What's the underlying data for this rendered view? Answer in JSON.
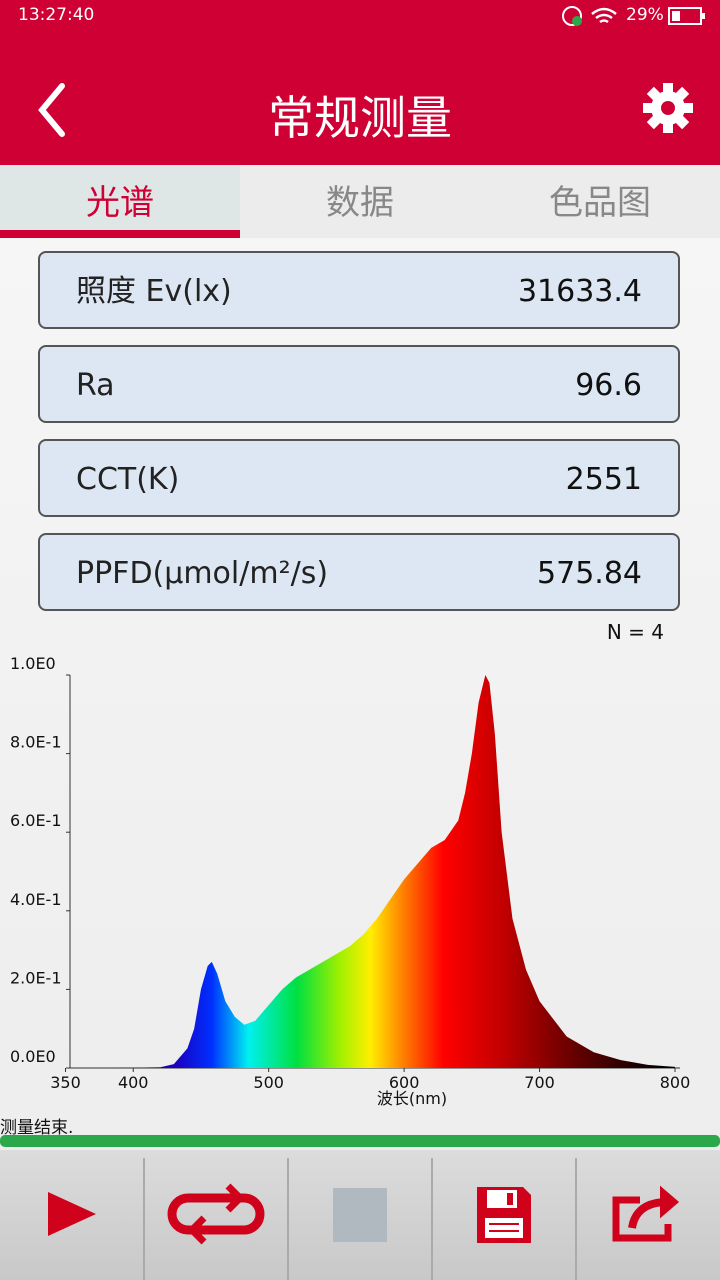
{
  "status_bar": {
    "time": "13:27:40",
    "battery": "29%"
  },
  "header": {
    "title": "常规测量"
  },
  "tabs": [
    "光谱",
    "数据",
    "色品图"
  ],
  "measurements": [
    {
      "label": "照度 Ev(lx)",
      "value": 31633.4
    },
    {
      "label": "Ra",
      "value": 96.6
    },
    {
      "label": "CCT(K)",
      "value": 2551
    },
    {
      "label": "PPFD(μmol/m²/s)",
      "value": 575.84
    }
  ],
  "sample_count": "N = 4",
  "chart_data": {
    "type": "area",
    "xlabel": "波长(nm)",
    "x": [
      380,
      420,
      430,
      440,
      445,
      450,
      455,
      458,
      462,
      468,
      475,
      482,
      490,
      500,
      510,
      520,
      530,
      540,
      550,
      560,
      570,
      580,
      590,
      600,
      610,
      620,
      630,
      640,
      645,
      650,
      655,
      660,
      663,
      667,
      672,
      680,
      690,
      700,
      720,
      740,
      760,
      780,
      800
    ],
    "values": [
      0,
      0.002,
      0.01,
      0.05,
      0.1,
      0.2,
      0.26,
      0.27,
      0.24,
      0.17,
      0.13,
      0.11,
      0.12,
      0.16,
      0.2,
      0.23,
      0.25,
      0.27,
      0.29,
      0.31,
      0.34,
      0.38,
      0.43,
      0.48,
      0.52,
      0.56,
      0.58,
      0.63,
      0.7,
      0.8,
      0.93,
      1.0,
      0.98,
      0.85,
      0.6,
      0.38,
      0.25,
      0.17,
      0.08,
      0.04,
      0.02,
      0.008,
      0.003
    ],
    "xlim": [
      350,
      800
    ],
    "xticks": [
      350,
      400,
      500,
      600,
      700,
      800
    ],
    "ylim": [
      0,
      1
    ],
    "yticks": [
      {
        "value": 0,
        "label": "0.0E0"
      },
      {
        "value": 0.2,
        "label": "2.0E-1"
      },
      {
        "value": 0.4,
        "label": "4.0E-1"
      },
      {
        "value": 0.6,
        "label": "6.0E-1"
      },
      {
        "value": 0.8,
        "label": "8.0E-1"
      },
      {
        "value": 1,
        "label": "1.0E0"
      }
    ]
  },
  "status_text": "测量结束."
}
